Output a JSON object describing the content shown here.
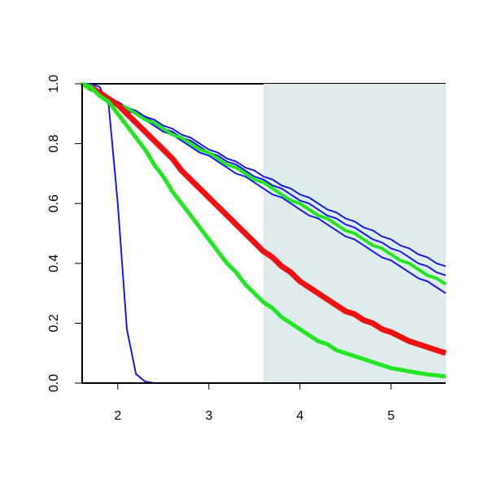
{
  "chart_data": {
    "type": "line",
    "x": [
      1.6,
      1.7,
      1.8,
      1.9,
      2.0,
      2.1,
      2.2,
      2.3,
      2.4,
      2.5,
      2.6,
      2.7,
      2.8,
      2.9,
      3.0,
      3.1,
      3.2,
      3.3,
      3.4,
      3.5,
      3.6,
      3.7,
      3.8,
      3.9,
      4.0,
      4.1,
      4.2,
      4.3,
      4.4,
      4.5,
      4.6,
      4.7,
      4.8,
      4.9,
      5.0,
      5.1,
      5.2,
      5.3,
      5.4,
      5.5,
      5.6
    ],
    "series": [
      {
        "color": "#1a1ae6",
        "linewidth": 2,
        "values": [
          1.0,
          1.0,
          0.99,
          0.93,
          0.6,
          0.18,
          0.03,
          0.005,
          0,
          0,
          0,
          0,
          0,
          0,
          0,
          0,
          0,
          0,
          0,
          0,
          0,
          0,
          0,
          0,
          0,
          0,
          0,
          0,
          0,
          0,
          0,
          0,
          0,
          0,
          0,
          0,
          0,
          0,
          0,
          0,
          0
        ]
      },
      {
        "color": "#1a1ae6",
        "linewidth": 2,
        "values": [
          1.0,
          0.98,
          0.97,
          0.95,
          0.94,
          0.92,
          0.91,
          0.89,
          0.88,
          0.86,
          0.85,
          0.83,
          0.82,
          0.8,
          0.78,
          0.77,
          0.75,
          0.74,
          0.72,
          0.71,
          0.69,
          0.68,
          0.66,
          0.65,
          0.63,
          0.62,
          0.6,
          0.58,
          0.57,
          0.55,
          0.54,
          0.52,
          0.51,
          0.49,
          0.48,
          0.46,
          0.45,
          0.43,
          0.42,
          0.4,
          0.39
        ]
      },
      {
        "color": "#1a1ae6",
        "linewidth": 2,
        "values": [
          1.0,
          0.98,
          0.97,
          0.95,
          0.94,
          0.92,
          0.9,
          0.89,
          0.87,
          0.85,
          0.84,
          0.82,
          0.81,
          0.79,
          0.77,
          0.76,
          0.74,
          0.73,
          0.71,
          0.69,
          0.68,
          0.66,
          0.65,
          0.63,
          0.61,
          0.6,
          0.58,
          0.56,
          0.55,
          0.53,
          0.52,
          0.5,
          0.48,
          0.47,
          0.45,
          0.44,
          0.42,
          0.4,
          0.39,
          0.37,
          0.36
        ]
      },
      {
        "color": "#1a1ae6",
        "linewidth": 2,
        "values": [
          1.0,
          0.98,
          0.97,
          0.95,
          0.93,
          0.91,
          0.9,
          0.88,
          0.86,
          0.84,
          0.83,
          0.81,
          0.79,
          0.77,
          0.76,
          0.74,
          0.72,
          0.7,
          0.69,
          0.67,
          0.65,
          0.63,
          0.62,
          0.6,
          0.58,
          0.56,
          0.55,
          0.53,
          0.51,
          0.49,
          0.48,
          0.46,
          0.44,
          0.42,
          0.41,
          0.39,
          0.37,
          0.35,
          0.34,
          0.32,
          0.3
        ]
      },
      {
        "color": "#22e622",
        "linewidth": 4,
        "values": [
          1.0,
          0.98,
          0.97,
          0.95,
          0.93,
          0.92,
          0.9,
          0.88,
          0.87,
          0.85,
          0.83,
          0.82,
          0.8,
          0.78,
          0.77,
          0.75,
          0.73,
          0.72,
          0.7,
          0.68,
          0.67,
          0.65,
          0.63,
          0.61,
          0.6,
          0.58,
          0.56,
          0.55,
          0.53,
          0.51,
          0.5,
          0.48,
          0.46,
          0.45,
          0.43,
          0.41,
          0.4,
          0.38,
          0.36,
          0.35,
          0.33
        ]
      },
      {
        "color": "#ee1111",
        "linewidth": 7,
        "values": [
          null,
          0.99,
          0.97,
          0.95,
          0.93,
          0.9,
          0.87,
          0.84,
          0.81,
          0.78,
          0.75,
          0.71,
          0.68,
          0.65,
          0.62,
          0.59,
          0.56,
          0.53,
          0.5,
          0.47,
          0.44,
          0.42,
          0.39,
          0.37,
          0.34,
          0.32,
          0.3,
          0.28,
          0.26,
          0.24,
          0.23,
          0.21,
          0.2,
          0.18,
          0.17,
          0.155,
          0.14,
          0.13,
          0.12,
          0.11,
          0.1
        ]
      },
      {
        "color": "#22e622",
        "linewidth": 5,
        "values": [
          1.0,
          0.99,
          0.96,
          0.94,
          0.9,
          0.86,
          0.82,
          0.78,
          0.73,
          0.69,
          0.64,
          0.6,
          0.56,
          0.52,
          0.48,
          0.44,
          0.4,
          0.37,
          0.33,
          0.3,
          0.27,
          0.25,
          0.22,
          0.2,
          0.18,
          0.16,
          0.14,
          0.13,
          0.11,
          0.1,
          0.09,
          0.08,
          0.07,
          0.06,
          0.05,
          0.045,
          0.039,
          0.034,
          0.029,
          0.026,
          0.022
        ]
      }
    ],
    "xlim": [
      1.6,
      5.6
    ],
    "ylim": [
      0,
      1
    ],
    "xticks": [
      2,
      3,
      4,
      5
    ],
    "yticks": [
      {
        "value": 0,
        "label": "0.0"
      },
      0.2,
      0.4,
      0.6,
      0.8,
      {
        "value": 1,
        "label": "1.0"
      }
    ],
    "highlight": {
      "x": [
        3.6,
        5.6
      ],
      "color": "#dfecec"
    }
  }
}
